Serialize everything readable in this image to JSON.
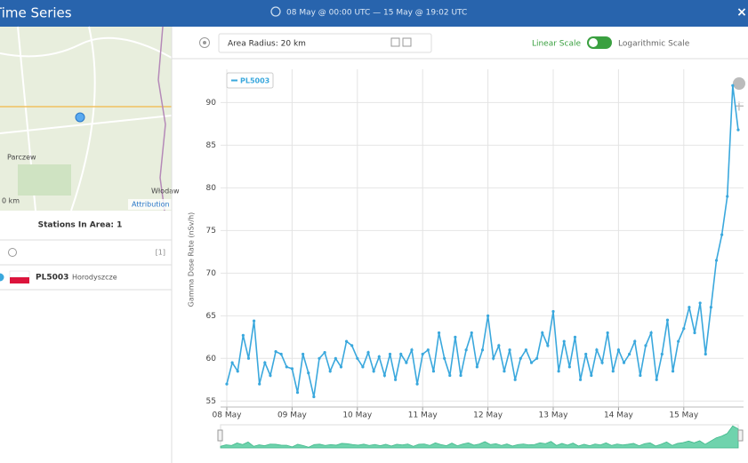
{
  "header": {
    "title": "Time Series",
    "range": "08 May @ 00:00 UTC — 15 May @ 19:02 UTC"
  },
  "map": {
    "labels": [
      "Parczew",
      "Włodaw",
      "0 km"
    ],
    "attribution": "Attribution"
  },
  "stations": {
    "title": "Stations In Area: 1",
    "count": "[1]",
    "items": [
      {
        "id": "PL5003",
        "name": "Horodyszcze"
      }
    ]
  },
  "controls": {
    "radius": "Area Radius: 20 km",
    "linear": "Linear Scale",
    "log": "Logarithmic Scale"
  },
  "chart_data": {
    "type": "line",
    "ylabel": "Gamma Dose Rate (nSv/h)",
    "log_scale": false,
    "grid": true,
    "legend": "upper-left",
    "categories": [
      "08 May",
      null,
      null,
      null,
      null,
      null,
      null,
      null,
      null,
      null,
      null,
      null,
      "09 May",
      null,
      null,
      null,
      null,
      null,
      null,
      null,
      null,
      null,
      null,
      null,
      "10 May",
      null,
      null,
      null,
      null,
      null,
      null,
      null,
      null,
      null,
      null,
      null,
      "11 May",
      null,
      null,
      null,
      null,
      null,
      null,
      null,
      null,
      null,
      null,
      null,
      "12 May",
      null,
      null,
      null,
      null,
      null,
      null,
      null,
      null,
      null,
      null,
      null,
      "13 May",
      null,
      null,
      null,
      null,
      null,
      null,
      null,
      null,
      null,
      null,
      null,
      "14 May",
      null,
      null,
      null,
      null,
      null,
      null,
      null,
      null,
      null,
      null,
      null,
      "15 May",
      null,
      null,
      null,
      null,
      null,
      null,
      null,
      null,
      null,
      null
    ],
    "series": [
      {
        "name": "PL5003",
        "color": "#3aa8dd",
        "values": [
          57,
          59.5,
          58.5,
          62.7,
          60,
          64.4,
          57,
          59.5,
          58,
          60.8,
          60.5,
          59,
          58.8,
          56,
          60.5,
          58.3,
          55.5,
          60,
          60.7,
          58.5,
          60,
          59,
          62,
          61.5,
          60,
          59,
          60.7,
          58.5,
          60.2,
          58,
          60.5,
          57.5,
          60.5,
          59.5,
          61,
          57,
          60.5,
          61,
          58.5,
          63,
          60,
          58,
          62.5,
          58,
          61,
          63,
          59,
          61,
          65,
          60,
          61.5,
          58.5,
          61,
          57.5,
          60,
          61,
          59.5,
          60,
          63,
          61.5,
          65.5,
          58.5,
          62,
          59,
          62.5,
          57.5,
          60.5,
          58,
          61,
          59.5,
          63,
          58.5,
          61,
          59.5,
          60.5,
          62,
          58,
          61.5,
          63,
          57.5,
          60.5,
          64.5,
          58.5,
          62,
          63.5,
          66,
          63,
          66.5,
          60.5,
          66,
          71.5,
          74.5,
          79,
          92,
          86.8
        ]
      }
    ],
    "ylim": [
      54.3,
      93.9
    ],
    "yticks": [
      55,
      60,
      65,
      70,
      75,
      80,
      85,
      90
    ]
  }
}
